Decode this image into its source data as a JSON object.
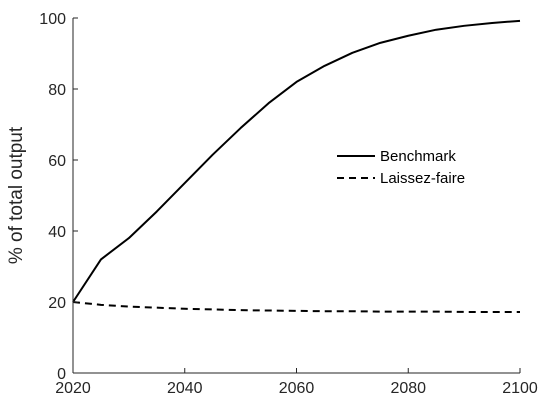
{
  "chart_data": {
    "type": "line",
    "title": "",
    "xlabel": "",
    "ylabel": "% of total output",
    "xlim": [
      2020,
      2100
    ],
    "ylim": [
      0,
      100
    ],
    "xticks": [
      2020,
      2040,
      2060,
      2080,
      2100
    ],
    "yticks": [
      0,
      20,
      40,
      60,
      80,
      100
    ],
    "grid": false,
    "legend_position": "center-right",
    "x": [
      2020,
      2025,
      2030,
      2035,
      2040,
      2045,
      2050,
      2055,
      2060,
      2065,
      2070,
      2075,
      2080,
      2085,
      2090,
      2095,
      2100
    ],
    "series": [
      {
        "name": "Benchmark",
        "style": "solid",
        "color": "#000000",
        "values": [
          20,
          32,
          38,
          45.5,
          53.5,
          61.5,
          69,
          76,
          82,
          86.5,
          90.2,
          93,
          95,
          96.7,
          97.8,
          98.6,
          99.2
        ]
      },
      {
        "name": "Laissez-faire",
        "style": "dashed",
        "color": "#000000",
        "values": [
          20,
          19.2,
          18.7,
          18.4,
          18.1,
          17.9,
          17.7,
          17.6,
          17.5,
          17.4,
          17.4,
          17.3,
          17.3,
          17.3,
          17.2,
          17.2,
          17.2
        ]
      }
    ]
  }
}
